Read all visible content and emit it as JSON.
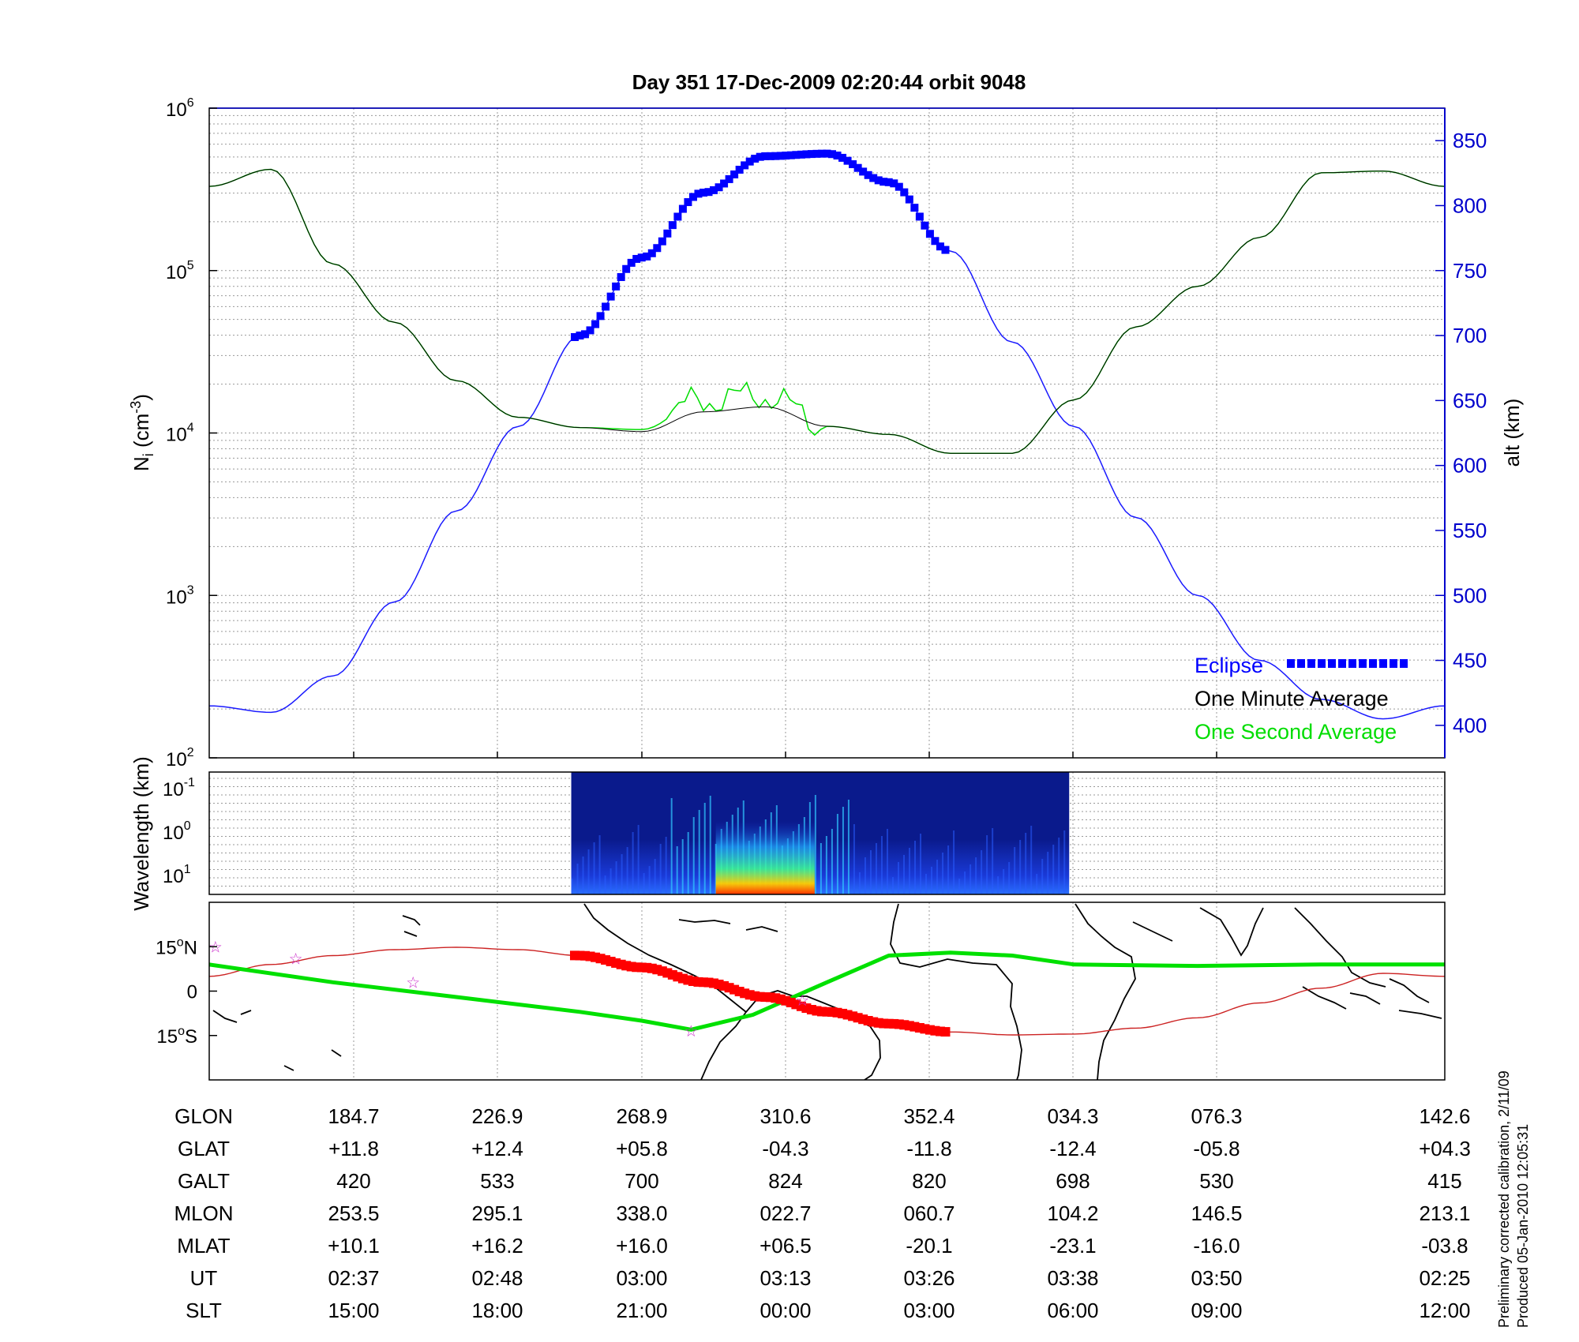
{
  "title": "Day 351  17-Dec-2009 02:20:44   orbit 9048",
  "colors": {
    "eclipse": "#0000ff",
    "one_minute": "#000000",
    "one_second": "#00dd00",
    "altitude_line": "#1a1aff",
    "orbit_track": "#cc2222",
    "eclipse_track": "#ff0000",
    "magnetic_equator": "#00e000",
    "axis_blue": "#0000cc"
  },
  "chart_data": [
    {
      "type": "line",
      "panel": "ion density and altitude",
      "ylabel_left": "N_i (cm^-3)",
      "ylabel_right": "alt (km)",
      "yscale_left": "log",
      "ylim_left": [
        100,
        1000000
      ],
      "ylim_right": [
        375,
        875
      ],
      "left_ticks": [
        {
          "base": "10",
          "exp": "2"
        },
        {
          "base": "10",
          "exp": "3"
        },
        {
          "base": "10",
          "exp": "4"
        },
        {
          "base": "10",
          "exp": "5"
        },
        {
          "base": "10",
          "exp": "6"
        }
      ],
      "right_ticks": [
        "400",
        "450",
        "500",
        "550",
        "600",
        "650",
        "700",
        "750",
        "800",
        "850"
      ],
      "grid": true,
      "x": [
        0,
        0.05,
        0.1,
        0.15,
        0.2,
        0.25,
        0.3,
        0.35,
        0.4,
        0.45,
        0.5,
        0.55,
        0.6,
        0.65,
        0.7,
        0.75,
        0.8,
        0.85,
        0.9,
        0.95,
        1.0
      ],
      "series": [
        {
          "name": "One Minute Average",
          "axis": "left",
          "values": [
            330000,
            420000,
            110000,
            48000,
            21000,
            12500,
            10800,
            10200,
            13500,
            14500,
            11000,
            9800,
            7500,
            7500,
            16000,
            45000,
            80000,
            160000,
            400000,
            410000,
            330000
          ]
        },
        {
          "name": "One Second Average",
          "axis": "left",
          "values": [
            330000,
            420000,
            110000,
            48000,
            21000,
            12500,
            10800,
            10500,
            16000,
            17000,
            11000,
            9800,
            7500,
            7500,
            16000,
            45000,
            80000,
            160000,
            400000,
            410000,
            330000
          ]
        },
        {
          "name": "altitude",
          "axis": "right",
          "values": [
            415,
            410,
            438,
            495,
            565,
            630,
            700,
            760,
            810,
            838,
            840,
            818,
            765,
            695,
            630,
            560,
            500,
            450,
            420,
            405,
            415
          ]
        }
      ],
      "eclipse_x_range": [
        0.295,
        0.598
      ],
      "legend": [
        "Eclipse",
        "One Minute Average",
        "One Second Average"
      ],
      "legend_position": "bottom-right"
    },
    {
      "type": "heatmap",
      "panel": "spectrogram",
      "ylabel": "Wavelength (km)",
      "y_ticks": [
        {
          "base": "10",
          "exp": "-1"
        },
        {
          "base": "10",
          "exp": "0"
        },
        {
          "base": "10",
          "exp": "1"
        }
      ],
      "data_x_range": [
        0.293,
        0.696
      ],
      "hot_region_x": [
        0.41,
        0.49
      ]
    },
    {
      "type": "map",
      "panel": "orbit track",
      "y_ticks": [
        {
          "value": "15",
          "hemisphere": "N"
        },
        {
          "value": "0",
          "hemisphere": ""
        },
        {
          "value": "15",
          "hemisphere": "S"
        }
      ],
      "ylim": [
        -30,
        30
      ],
      "orbit_track": {
        "x": [
          0,
          0.05,
          0.1,
          0.15,
          0.2,
          0.25,
          0.3,
          0.35,
          0.4,
          0.45,
          0.5,
          0.55,
          0.6,
          0.65,
          0.7,
          0.75,
          0.8,
          0.85,
          0.9,
          0.95,
          1.0
        ],
        "lat": [
          5,
          9,
          12,
          14,
          14.8,
          14,
          12,
          8,
          3,
          -2,
          -7,
          -11,
          -13.8,
          -14.8,
          -14.5,
          -12.5,
          -9,
          -4,
          1,
          6,
          5
        ]
      },
      "eclipse_track_x_range": [
        0.295,
        0.598
      ],
      "magnetic_equator": {
        "x": [
          0,
          0.1,
          0.2,
          0.3,
          0.35,
          0.39,
          0.44,
          0.5,
          0.55,
          0.6,
          0.65,
          0.7,
          0.8,
          0.9,
          1.0
        ],
        "lat": [
          9,
          3,
          -2,
          -7,
          -10,
          -13,
          -8,
          3,
          12,
          13,
          12,
          9,
          8.5,
          9,
          9
        ]
      },
      "stars": [
        {
          "x": 0.005,
          "lat": 15
        },
        {
          "x": 0.07,
          "lat": 11
        },
        {
          "x": 0.165,
          "lat": 3
        },
        {
          "x": 0.39,
          "lat": -13.5
        },
        {
          "x": 0.48,
          "lat": -3
        }
      ]
    }
  ],
  "table": {
    "rows": [
      {
        "label": "GLON",
        "values": [
          "184.7",
          "226.9",
          "268.9",
          "310.6",
          "352.4",
          "034.3",
          "076.3",
          "142.6"
        ]
      },
      {
        "label": "GLAT",
        "values": [
          "+11.8",
          "+12.4",
          "+05.8",
          "-04.3",
          "-11.8",
          "-12.4",
          "-05.8",
          "+04.3"
        ]
      },
      {
        "label": "GALT",
        "values": [
          "420",
          "533",
          "700",
          "824",
          "820",
          "698",
          "530",
          "415"
        ]
      },
      {
        "label": "MLON",
        "values": [
          "253.5",
          "295.1",
          "338.0",
          "022.7",
          "060.7",
          "104.2",
          "146.5",
          "213.1"
        ]
      },
      {
        "label": "MLAT",
        "values": [
          "+10.1",
          "+16.2",
          "+16.0",
          "+06.5",
          "-20.1",
          "-23.1",
          "-16.0",
          "-03.8"
        ]
      },
      {
        "label": "UT",
        "values": [
          "02:37",
          "02:48",
          "03:00",
          "03:13",
          "03:26",
          "03:38",
          "03:50",
          "02:25"
        ]
      },
      {
        "label": "SLT",
        "values": [
          "15:00",
          "18:00",
          "21:00",
          "00:00",
          "03:00",
          "06:00",
          "09:00",
          "12:00"
        ]
      }
    ]
  },
  "notes": {
    "calibration": "Preliminary corrected calibration, 2/11/09",
    "produced": "Produced 05-Jan-2010 12:05:31"
  }
}
